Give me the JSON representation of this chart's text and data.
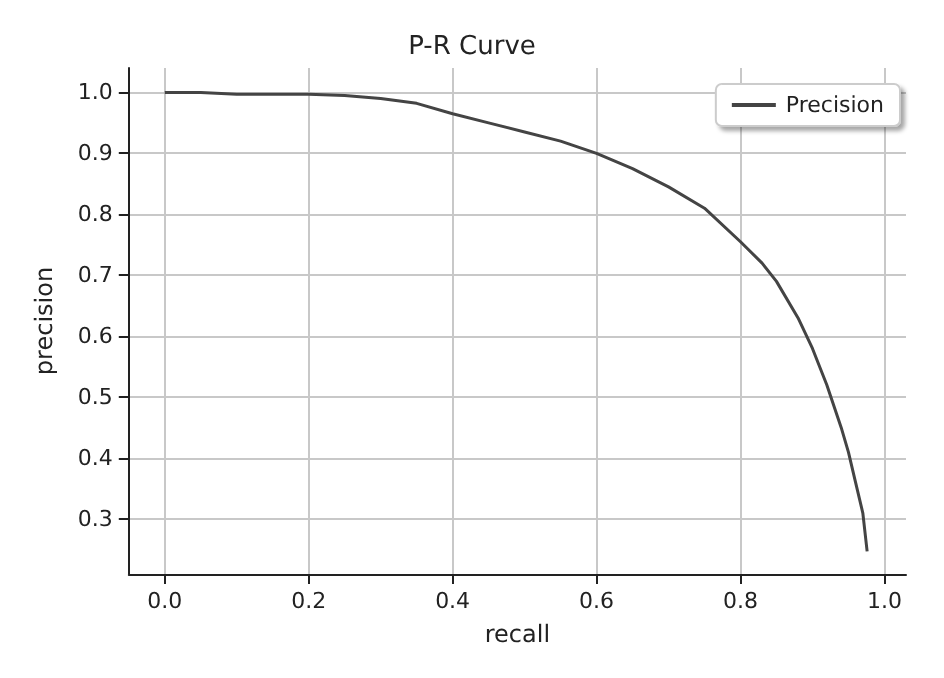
{
  "chart_data": {
    "type": "line",
    "title": "P-R Curve",
    "xlabel": "recall",
    "ylabel": "precision",
    "x": [
      0,
      0.05,
      0.1,
      0.15,
      0.2,
      0.25,
      0.3,
      0.35,
      0.4,
      0.45,
      0.5,
      0.55,
      0.6,
      0.65,
      0.7,
      0.75,
      0.8,
      0.83,
      0.85,
      0.88,
      0.9,
      0.92,
      0.94,
      0.95,
      0.96,
      0.97,
      0.976
    ],
    "series": [
      {
        "name": "Precision",
        "color": "#444444",
        "values": [
          1.0,
          1.0,
          0.997,
          0.997,
          0.997,
          0.995,
          0.99,
          0.982,
          0.965,
          0.95,
          0.935,
          0.92,
          0.9,
          0.875,
          0.845,
          0.81,
          0.755,
          0.72,
          0.69,
          0.63,
          0.58,
          0.52,
          0.45,
          0.41,
          0.36,
          0.31,
          0.247
        ]
      }
    ],
    "xlim": [
      -0.05,
      1.03
    ],
    "ylim": [
      0.21,
      1.04
    ],
    "xticks": [
      {
        "value": 0,
        "label": "0.0"
      },
      0.2,
      0.4,
      0.6,
      0.8,
      {
        "value": 1,
        "label": "1.0"
      }
    ],
    "yticks": [
      0.3,
      0.4,
      0.5,
      0.6,
      0.7,
      0.8,
      0.9,
      {
        "value": 1,
        "label": "1.0"
      }
    ],
    "grid": true,
    "legend": "top right",
    "marker": "none",
    "line_style": "solid"
  }
}
